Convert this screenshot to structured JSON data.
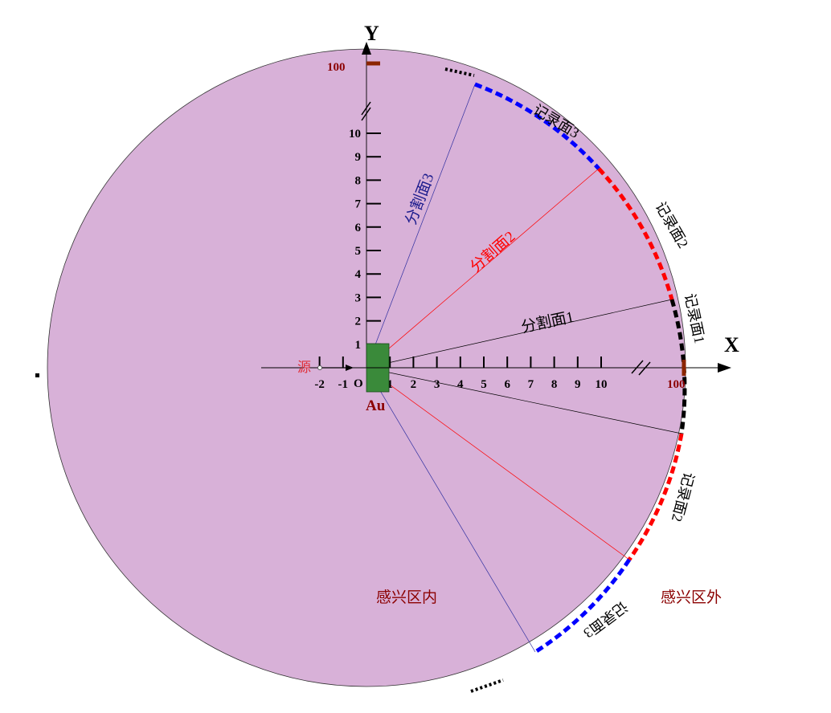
{
  "axes": {
    "x_label": "X",
    "y_label": "Y",
    "origin_label": "O",
    "x_ticks": [
      "-2",
      "-1",
      "1",
      "2",
      "3",
      "4",
      "5",
      "6",
      "7",
      "8",
      "9",
      "10"
    ],
    "y_ticks": [
      "1",
      "2",
      "3",
      "4",
      "5",
      "6",
      "7",
      "8",
      "9",
      "10"
    ],
    "far_value": "100",
    "far_value_y": "100"
  },
  "source_label": "源",
  "target_label": "Au",
  "split_planes": [
    {
      "label": "分割面1",
      "color": "#000000"
    },
    {
      "label": "分割面2",
      "color": "#ff0000"
    },
    {
      "label": "分割面3",
      "color": "#1a1a8c"
    }
  ],
  "record_planes": [
    {
      "label": "记录面1",
      "color": "#000000"
    },
    {
      "label": "记录面2",
      "color": "#ff0000"
    },
    {
      "label": "记录面3",
      "color": "#0000ff"
    }
  ],
  "regions": {
    "inside": "感兴区内",
    "outside": "感兴区外"
  },
  "colors": {
    "region_fill": "#d8b1d8",
    "target_fill": "#3a8a3a",
    "far_marker": "#8b2500",
    "label_red": "#8b0000"
  }
}
